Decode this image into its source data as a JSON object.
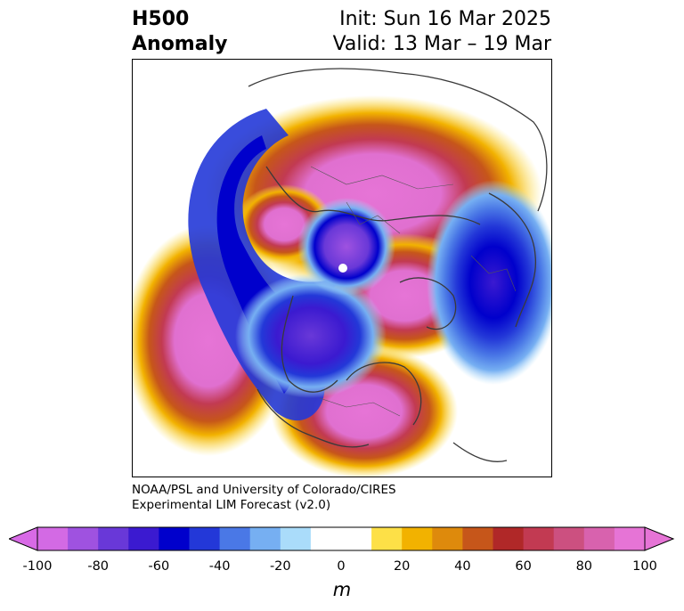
{
  "title": {
    "left_line1": "H500",
    "left_line2": "Anomaly",
    "right_line1": "Init: Sun 16 Mar 2025",
    "right_line2": "Valid: 13 Mar – 19 Mar"
  },
  "credit": {
    "line1": "NOAA/PSL and University of Colorado/CIRES",
    "line2": "Experimental LIM Forecast (v2.0)"
  },
  "colorbar": {
    "unit": "m",
    "ticks": [
      "-100",
      "-80",
      "-60",
      "-40",
      "-20",
      "0",
      "20",
      "40",
      "60",
      "80",
      "100"
    ],
    "colors": [
      "#d36ae4",
      "#9f52e0",
      "#6938d8",
      "#3b1ad0",
      "#0000cc",
      "#2338d8",
      "#4a78e6",
      "#76aff2",
      "#aadcfa",
      "#ffffff",
      "#ffffff",
      "#fde047",
      "#f2b200",
      "#de8a0c",
      "#c6561a",
      "#b02828",
      "#c23a52",
      "#cc5080",
      "#d862ae",
      "#e674d6"
    ],
    "under_color": "#d86ae6",
    "over_color": "#e674d6"
  }
}
